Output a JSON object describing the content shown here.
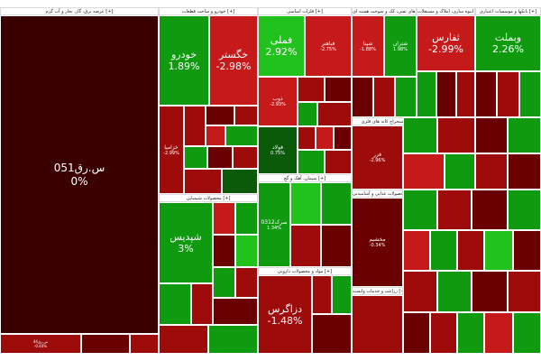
{
  "colors": {
    "dark_red": "#3a0000",
    "maroon": "#6b0000",
    "red": "#9e0b0b",
    "bright_red": "#c61a1a",
    "green": "#0f9a0f",
    "bright_green": "#22c21c",
    "dark_green": "#0a5a0a",
    "header_bg": "#ffffff"
  },
  "sectors": [
    {
      "label": "عرضه برق، گاز، بخار و آب گرم [+]"
    },
    {
      "label": "خودرو و ساخت قطعات [+]"
    },
    {
      "label": "فلزات اساسی [+]"
    },
    {
      "label": "فراورده های نفتی، کک و سوخت هسته ای [+]"
    },
    {
      "label": "انبوه سازی، املاک و مستغلات [+]"
    },
    {
      "label": "بانکها و موسسات اعتباری [+]"
    },
    {
      "label": "محصولات شیمیایی [+]"
    },
    {
      "label": "سیمان، آهک و گچ [+]"
    },
    {
      "label": "مواد و محصولات دارویی [+]"
    },
    {
      "label": "محصولات غذایی و آشامیدنی [+]"
    },
    {
      "label": "استخراج کانه های فلزی [+]"
    },
    {
      "label": "زراعت و خدمات وابسته [+]"
    }
  ],
  "tiles": [
    {
      "name": "س.رق051",
      "pct": "0%"
    },
    {
      "name": "س.رق44",
      "pct": "-0.40%"
    },
    {
      "name": "خودرو",
      "pct": "1.89%"
    },
    {
      "name": "خگستر",
      "pct": "-2.98%"
    },
    {
      "name": "خزامیا",
      "pct": "-2.99%"
    },
    {
      "name": "فملی",
      "pct": "2.92%"
    },
    {
      "name": "فباهنر",
      "pct": "-2.75%"
    },
    {
      "name": "ذوب",
      "pct": "-2.93%"
    },
    {
      "name": "فولاد",
      "pct": "0.75%"
    },
    {
      "name": "شپنا",
      "pct": "-1.88%"
    },
    {
      "name": "شتران",
      "pct": "1.98%"
    },
    {
      "name": "ثفارس",
      "pct": "-2.99%"
    },
    {
      "name": "وبملت",
      "pct": "2.26%"
    },
    {
      "name": "فزر",
      "pct": "-2.96%"
    },
    {
      "name": "شپدیس",
      "pct": "3%"
    },
    {
      "name": "صرک0312",
      "pct": "1.34%"
    },
    {
      "name": "دزاگرس",
      "pct": "-1.48%"
    },
    {
      "name": "مخشیم",
      "pct": "-0.34%"
    }
  ]
}
